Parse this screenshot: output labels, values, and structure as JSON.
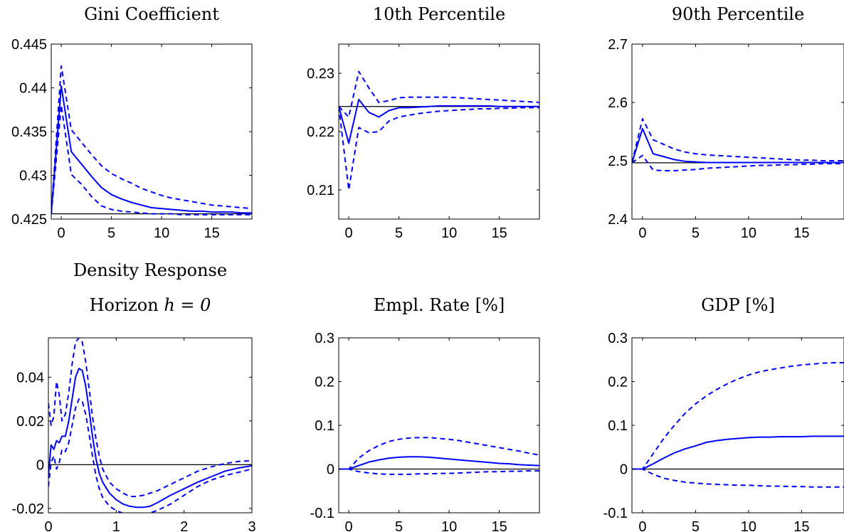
{
  "colors": {
    "series": "#0000ff",
    "reference": "#000000",
    "frame": "#000000"
  },
  "chart_data": [
    {
      "id": "gini",
      "type": "line",
      "title": "Gini Coefficient",
      "xlim": [
        -1,
        19
      ],
      "ylim": [
        0.425,
        0.445
      ],
      "xticks": [
        0,
        5,
        10,
        15
      ],
      "xtick_labels": [
        "0",
        "5",
        "10",
        "15"
      ],
      "yticks": [
        0.425,
        0.43,
        0.435,
        0.44,
        0.445
      ],
      "ytick_labels": [
        "0.425",
        "0.43",
        "0.435",
        "0.44",
        "0.445"
      ],
      "reference_y": 0.4256,
      "x": [
        -1,
        0,
        1,
        2,
        3,
        4,
        5,
        6,
        7,
        8,
        9,
        10,
        11,
        12,
        13,
        14,
        15,
        16,
        17,
        18,
        19
      ],
      "series": [
        {
          "style": "solid",
          "values": [
            0.4256,
            0.4402,
            0.4327,
            0.4313,
            0.4299,
            0.4286,
            0.4278,
            0.4273,
            0.4269,
            0.4266,
            0.4263,
            0.4262,
            0.4261,
            0.426,
            0.4259,
            0.4259,
            0.4258,
            0.4258,
            0.4258,
            0.4257,
            0.4257
          ]
        },
        {
          "style": "dashed",
          "values": [
            0.4256,
            0.4425,
            0.4352,
            0.4338,
            0.4324,
            0.4311,
            0.4302,
            0.4296,
            0.4291,
            0.4285,
            0.4281,
            0.4277,
            0.4274,
            0.4272,
            0.427,
            0.4268,
            0.4266,
            0.4265,
            0.4264,
            0.4263,
            0.4262
          ]
        },
        {
          "style": "dashed",
          "values": [
            0.4256,
            0.438,
            0.4301,
            0.429,
            0.4276,
            0.4265,
            0.4261,
            0.4259,
            0.4258,
            0.4257,
            0.4256,
            0.4256,
            0.4256,
            0.4255,
            0.4255,
            0.4255,
            0.4255,
            0.4255,
            0.4255,
            0.4255,
            0.4255
          ]
        }
      ]
    },
    {
      "id": "p10",
      "type": "line",
      "title": "10th Percentile",
      "xlim": [
        -1,
        19
      ],
      "ylim": [
        0.205,
        0.235
      ],
      "xticks": [
        0,
        5,
        10,
        15
      ],
      "xtick_labels": [
        "0",
        "5",
        "10",
        "15"
      ],
      "yticks": [
        0.21,
        0.22,
        0.23
      ],
      "ytick_labels": [
        "0.21",
        "0.22",
        "0.23"
      ],
      "reference_y": 0.2243,
      "x": [
        -1,
        0,
        1,
        2,
        3,
        4,
        5,
        6,
        7,
        8,
        9,
        10,
        11,
        12,
        13,
        14,
        15,
        16,
        17,
        18,
        19
      ],
      "series": [
        {
          "style": "solid",
          "values": [
            0.2243,
            0.218,
            0.2255,
            0.2233,
            0.2225,
            0.2236,
            0.2241,
            0.2241,
            0.2242,
            0.2243,
            0.2244,
            0.2244,
            0.2244,
            0.2244,
            0.2244,
            0.2244,
            0.2243,
            0.2243,
            0.2243,
            0.2243,
            0.2243
          ]
        },
        {
          "style": "dashed",
          "values": [
            0.2243,
            0.2225,
            0.2303,
            0.2275,
            0.225,
            0.2253,
            0.2258,
            0.2259,
            0.2259,
            0.2259,
            0.2259,
            0.2259,
            0.2258,
            0.2257,
            0.2256,
            0.2255,
            0.2254,
            0.2253,
            0.2252,
            0.2251,
            0.225
          ]
        },
        {
          "style": "dashed",
          "values": [
            0.2243,
            0.21,
            0.2207,
            0.2198,
            0.22,
            0.2218,
            0.2225,
            0.2228,
            0.2231,
            0.2233,
            0.2235,
            0.2236,
            0.2237,
            0.2238,
            0.2239,
            0.2239,
            0.224,
            0.224,
            0.2241,
            0.2241,
            0.2241
          ]
        }
      ]
    },
    {
      "id": "p90",
      "type": "line",
      "title": "90th Percentile",
      "xlim": [
        -1,
        19
      ],
      "ylim": [
        2.4,
        2.7
      ],
      "xticks": [
        0,
        5,
        10,
        15
      ],
      "xtick_labels": [
        "0",
        "5",
        "10",
        "15"
      ],
      "yticks": [
        2.4,
        2.5,
        2.6,
        2.7
      ],
      "ytick_labels": [
        "2.4",
        "2.5",
        "2.6",
        "2.7"
      ],
      "reference_y": 2.4965,
      "x": [
        -1,
        0,
        1,
        2,
        3,
        4,
        5,
        6,
        7,
        8,
        9,
        10,
        11,
        12,
        13,
        14,
        15,
        16,
        17,
        18,
        19
      ],
      "series": [
        {
          "style": "solid",
          "values": [
            2.4965,
            2.555,
            2.512,
            2.507,
            2.502,
            2.499,
            2.498,
            2.497,
            2.497,
            2.497,
            2.497,
            2.497,
            2.497,
            2.497,
            2.497,
            2.497,
            2.497,
            2.497,
            2.497,
            2.497,
            2.497
          ]
        },
        {
          "style": "dashed",
          "values": [
            2.4965,
            2.572,
            2.536,
            2.528,
            2.52,
            2.515,
            2.512,
            2.51,
            2.509,
            2.508,
            2.507,
            2.506,
            2.505,
            2.504,
            2.503,
            2.502,
            2.501,
            2.501,
            2.5,
            2.5,
            2.5
          ]
        },
        {
          "style": "dashed",
          "values": [
            2.4965,
            2.509,
            2.484,
            2.483,
            2.483,
            2.484,
            2.485,
            2.487,
            2.488,
            2.489,
            2.49,
            2.491,
            2.492,
            2.492,
            2.493,
            2.493,
            2.494,
            2.494,
            2.495,
            2.495,
            2.495
          ]
        }
      ]
    },
    {
      "id": "density",
      "type": "line",
      "title": "Density Response",
      "title_line2_prefix": "Horizon ",
      "title_line2_math": "h = 0",
      "xlim": [
        0,
        3
      ],
      "ylim": [
        -0.022,
        0.058
      ],
      "xticks": [
        0,
        1,
        2,
        3
      ],
      "xtick_labels": [
        "0",
        "1",
        "2",
        "3"
      ],
      "yticks": [
        -0.02,
        0,
        0.02,
        0.04
      ],
      "ytick_labels": [
        "-0.02",
        "0",
        "0.02",
        "0.04"
      ],
      "reference_y": 0,
      "series": [
        {
          "style": "solid",
          "x": [
            0,
            0.04,
            0.08,
            0.12,
            0.16,
            0.2,
            0.25,
            0.3,
            0.35,
            0.4,
            0.45,
            0.5,
            0.55,
            0.6,
            0.65,
            0.7,
            0.75,
            0.8,
            0.9,
            1.0,
            1.1,
            1.2,
            1.3,
            1.4,
            1.5,
            1.6,
            1.8,
            2.0,
            2.2,
            2.4,
            2.6,
            2.8,
            3.0
          ],
          "values": [
            -0.005,
            0.009,
            0.007,
            0.011,
            0.01,
            0.013,
            0.013,
            0.02,
            0.03,
            0.04,
            0.044,
            0.043,
            0.036,
            0.025,
            0.013,
            0.003,
            -0.004,
            -0.008,
            -0.013,
            -0.016,
            -0.018,
            -0.019,
            -0.0195,
            -0.0195,
            -0.019,
            -0.0175,
            -0.014,
            -0.011,
            -0.008,
            -0.0055,
            -0.003,
            -0.0015,
            -0.0005
          ]
        },
        {
          "style": "dashed",
          "x": [
            0,
            0.04,
            0.08,
            0.12,
            0.16,
            0.2,
            0.25,
            0.3,
            0.35,
            0.4,
            0.45,
            0.5,
            0.55,
            0.6,
            0.65,
            0.7,
            0.75,
            0.8,
            0.9,
            1.0,
            1.1,
            1.2,
            1.3,
            1.4,
            1.5,
            1.6,
            1.8,
            2.0,
            2.2,
            2.4,
            2.6,
            2.8,
            3.0
          ],
          "values": [
            0.028,
            0.018,
            0.022,
            0.038,
            0.032,
            0.02,
            0.023,
            0.033,
            0.046,
            0.056,
            0.058,
            0.056,
            0.047,
            0.035,
            0.022,
            0.012,
            0.004,
            -0.002,
            -0.008,
            -0.011,
            -0.013,
            -0.0145,
            -0.0145,
            -0.014,
            -0.013,
            -0.012,
            -0.009,
            -0.006,
            -0.003,
            -0.001,
            0.0005,
            0.0015,
            0.0018
          ]
        },
        {
          "style": "dashed",
          "x": [
            0,
            0.04,
            0.08,
            0.12,
            0.16,
            0.2,
            0.25,
            0.3,
            0.35,
            0.4,
            0.45,
            0.5,
            0.55,
            0.6,
            0.65,
            0.7,
            0.75,
            0.8,
            0.9,
            1.0,
            1.1,
            1.2,
            1.3,
            1.4,
            1.5,
            1.6,
            1.8,
            2.0,
            2.2,
            2.4,
            2.6,
            2.8,
            3.0
          ],
          "values": [
            -0.01,
            0.001,
            0.004,
            -0.002,
            0.001,
            0.007,
            0.006,
            0.01,
            0.018,
            0.026,
            0.03,
            0.029,
            0.023,
            0.014,
            0.004,
            -0.005,
            -0.011,
            -0.015,
            -0.019,
            -0.021,
            -0.0222,
            -0.0228,
            -0.023,
            -0.0228,
            -0.022,
            -0.021,
            -0.018,
            -0.014,
            -0.01,
            -0.007,
            -0.005,
            -0.0035,
            -0.002
          ]
        }
      ]
    },
    {
      "id": "empl",
      "type": "line",
      "title": "Empl. Rate [%]",
      "xlim": [
        -1,
        19
      ],
      "ylim": [
        -0.1,
        0.3
      ],
      "xticks": [
        0,
        5,
        10,
        15
      ],
      "xtick_labels": [
        "0",
        "5",
        "10",
        "15"
      ],
      "yticks": [
        -0.1,
        0,
        0.1,
        0.2,
        0.3
      ],
      "ytick_labels": [
        "-0.1",
        "0",
        "0.1",
        "0.2",
        "0.3"
      ],
      "reference_y": 0,
      "x": [
        -1,
        0,
        1,
        2,
        3,
        4,
        5,
        6,
        7,
        8,
        9,
        10,
        11,
        12,
        13,
        14,
        15,
        16,
        17,
        18,
        19
      ],
      "series": [
        {
          "style": "solid",
          "values": [
            0,
            0,
            0.008,
            0.016,
            0.021,
            0.025,
            0.027,
            0.028,
            0.028,
            0.027,
            0.025,
            0.023,
            0.021,
            0.019,
            0.017,
            0.015,
            0.013,
            0.012,
            0.01,
            0.009,
            0.008
          ]
        },
        {
          "style": "dashed",
          "values": [
            0,
            0,
            0.025,
            0.042,
            0.054,
            0.063,
            0.068,
            0.071,
            0.072,
            0.072,
            0.07,
            0.068,
            0.065,
            0.061,
            0.057,
            0.053,
            0.049,
            0.045,
            0.041,
            0.036,
            0.032
          ]
        },
        {
          "style": "dashed",
          "values": [
            0,
            0,
            -0.006,
            -0.009,
            -0.011,
            -0.012,
            -0.012,
            -0.012,
            -0.011,
            -0.011,
            -0.01,
            -0.01,
            -0.009,
            -0.008,
            -0.007,
            -0.006,
            -0.006,
            -0.005,
            -0.005,
            -0.004,
            -0.004
          ]
        }
      ]
    },
    {
      "id": "gdp",
      "type": "line",
      "title": "GDP [%]",
      "xlim": [
        -1,
        19
      ],
      "ylim": [
        -0.1,
        0.3
      ],
      "xticks": [
        0,
        5,
        10,
        15
      ],
      "xtick_labels": [
        "0",
        "5",
        "10",
        "15"
      ],
      "yticks": [
        -0.1,
        0,
        0.1,
        0.2,
        0.3
      ],
      "ytick_labels": [
        "-0.1",
        "0",
        "0.1",
        "0.2",
        "0.3"
      ],
      "reference_y": 0,
      "x": [
        -1,
        0,
        1,
        2,
        3,
        4,
        5,
        6,
        7,
        8,
        9,
        10,
        11,
        12,
        13,
        14,
        15,
        16,
        17,
        18,
        19
      ],
      "series": [
        {
          "style": "solid",
          "values": [
            0,
            0,
            0.012,
            0.025,
            0.037,
            0.046,
            0.053,
            0.061,
            0.065,
            0.068,
            0.07,
            0.072,
            0.073,
            0.073,
            0.074,
            0.074,
            0.074,
            0.075,
            0.075,
            0.075,
            0.075
          ]
        },
        {
          "style": "dashed",
          "values": [
            0,
            0,
            0.035,
            0.07,
            0.1,
            0.127,
            0.149,
            0.167,
            0.182,
            0.195,
            0.206,
            0.215,
            0.222,
            0.227,
            0.231,
            0.235,
            0.238,
            0.24,
            0.242,
            0.243,
            0.243
          ]
        },
        {
          "style": "dashed",
          "values": [
            0,
            0,
            -0.012,
            -0.021,
            -0.026,
            -0.03,
            -0.032,
            -0.034,
            -0.035,
            -0.036,
            -0.037,
            -0.037,
            -0.038,
            -0.039,
            -0.039,
            -0.04,
            -0.04,
            -0.041,
            -0.041,
            -0.041,
            -0.041
          ]
        }
      ]
    }
  ]
}
